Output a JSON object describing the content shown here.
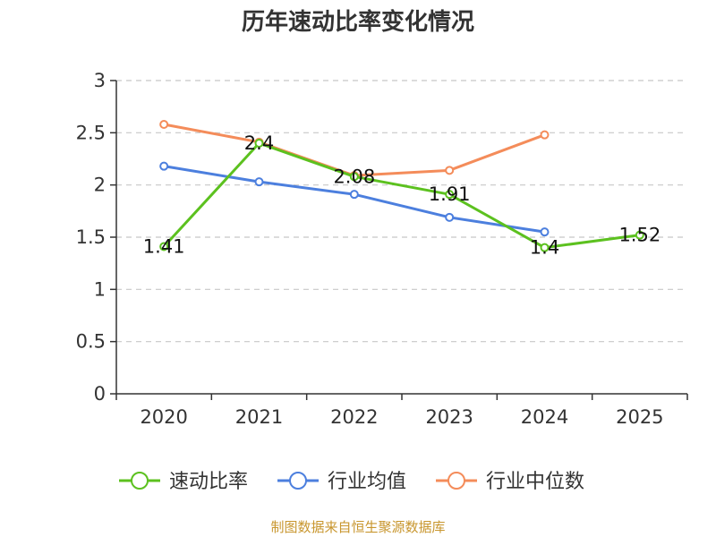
{
  "chart_data": {
    "type": "line",
    "title": "历年速动比率变化情况",
    "categories": [
      "2020",
      "2021",
      "2022",
      "2023",
      "2024",
      "2025"
    ],
    "ylim": [
      0,
      3
    ],
    "yticks": [
      0,
      0.5,
      1,
      1.5,
      2,
      2.5,
      3
    ],
    "ytick_labels": [
      "0",
      "0.5",
      "1",
      "1.5",
      "2",
      "2.5",
      "3"
    ],
    "grid": true,
    "legend_position": "bottom",
    "series": [
      {
        "name": "速动比率",
        "color": "#5cc11f",
        "values": [
          1.41,
          2.4,
          2.08,
          1.91,
          1.4,
          1.52
        ],
        "labels": [
          "1.41",
          "2.4",
          "2.08",
          "1.91",
          "1.4",
          "1.52"
        ]
      },
      {
        "name": "行业均值",
        "color": "#4c7fde",
        "values": [
          2.18,
          2.03,
          1.91,
          1.69,
          1.55,
          null
        ]
      },
      {
        "name": "行业中位数",
        "color": "#f48c5a",
        "values": [
          2.58,
          2.41,
          2.09,
          2.14,
          2.48,
          null
        ]
      }
    ]
  },
  "footer": {
    "source": "制图数据来自恒生聚源数据库"
  }
}
